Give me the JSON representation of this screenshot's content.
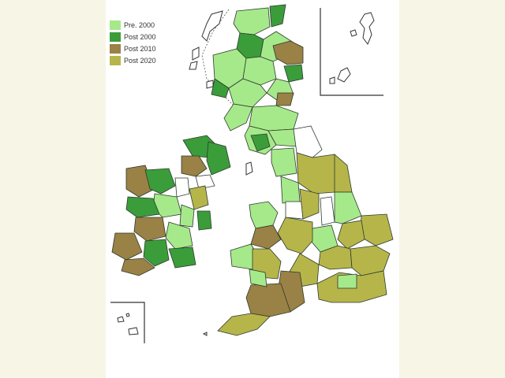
{
  "legend": {
    "items": [
      {
        "label": "Pre.  2000",
        "color": "#a6e98a"
      },
      {
        "label": "Post 2000",
        "color": "#3a9d3a"
      },
      {
        "label": "Post 2010",
        "color": "#9a8145"
      },
      {
        "label": "Post 2020",
        "color": "#b6b54a"
      }
    ]
  },
  "colors": {
    "pre2000": "#a6e98a",
    "post2000": "#3a9d3a",
    "post2010": "#9a8145",
    "post2020": "#b6b54a",
    "unassigned": "#ffffff",
    "border": "#2d3a2d",
    "background": "#f7f5e6",
    "panel": "#ffffff"
  }
}
